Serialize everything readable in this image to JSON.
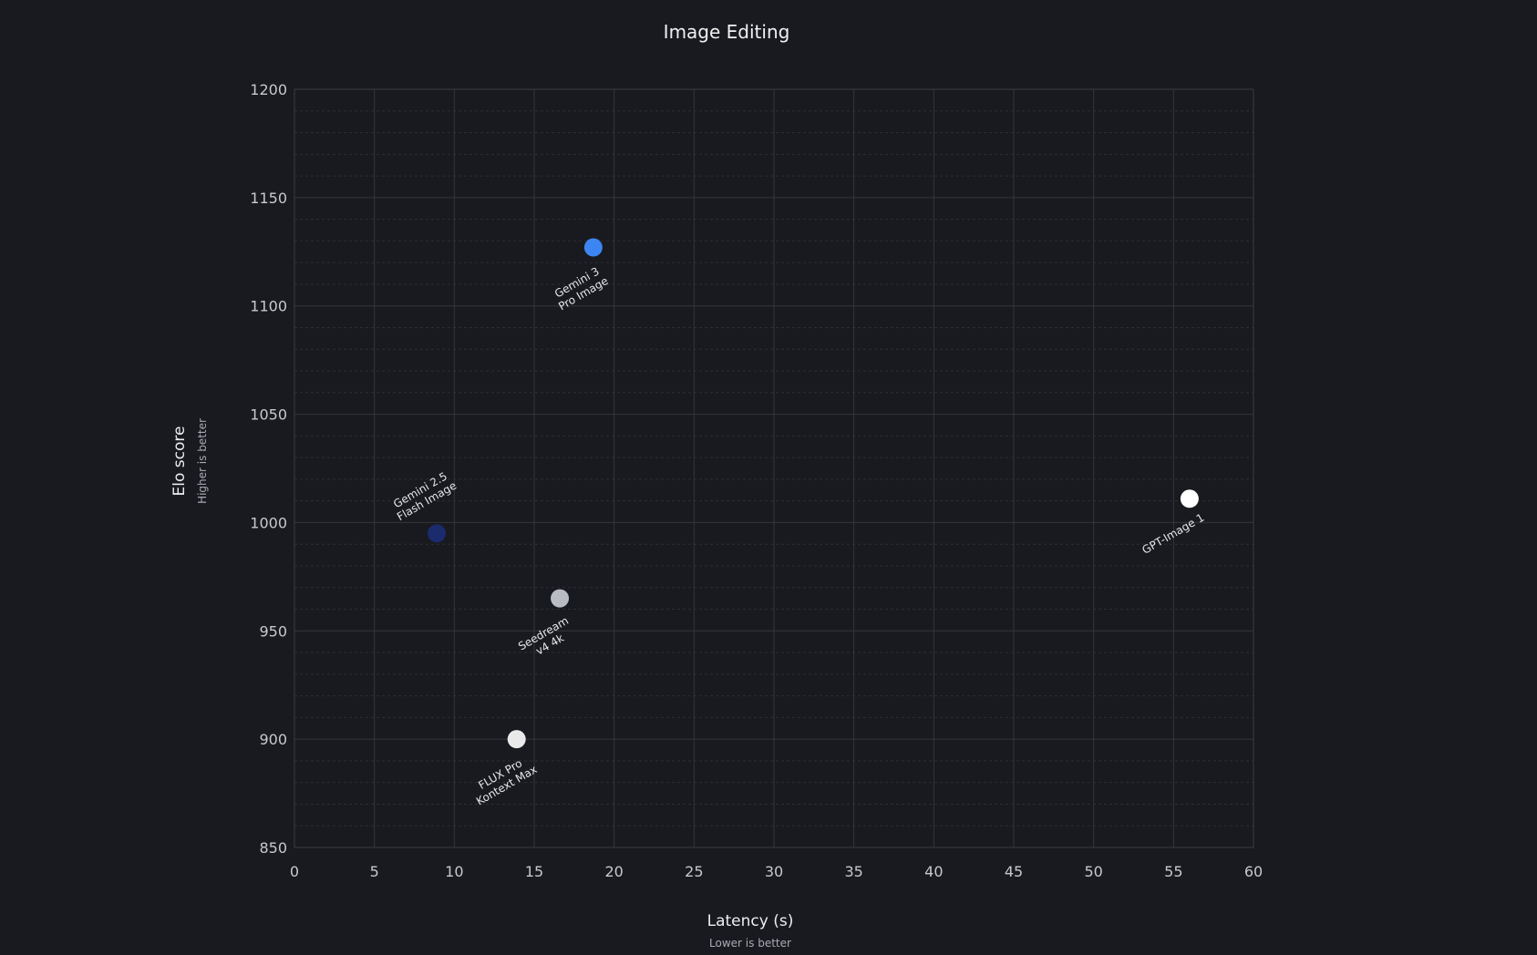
{
  "chart_data": {
    "type": "scatter",
    "title": "Image Editing",
    "xlabel": "Latency (s)",
    "xlabel_sub": "Lower is better",
    "ylabel": "Elo score",
    "ylabel_sub": "Higher is better",
    "xlim": [
      0,
      60
    ],
    "ylim": [
      850,
      1200
    ],
    "xticks": [
      0,
      5,
      10,
      15,
      20,
      25,
      30,
      35,
      40,
      45,
      50,
      55,
      60
    ],
    "yticks": [
      850,
      900,
      950,
      1000,
      1050,
      1100,
      1150,
      1200
    ],
    "grid": true,
    "points": [
      {
        "label_lines": [
          "Gemini 3",
          "Pro Image"
        ],
        "x": 18.7,
        "y": 1127,
        "color": "#3d86f2",
        "label_position": "below"
      },
      {
        "label_lines": [
          "Gemini 2.5",
          "Flash Image"
        ],
        "x": 8.9,
        "y": 995,
        "color": "#1c2a6e",
        "label_position": "above"
      },
      {
        "label_lines": [
          "Seedream",
          "v4 4k"
        ],
        "x": 16.6,
        "y": 965,
        "color": "#b9bcc2",
        "label_position": "below"
      },
      {
        "label_lines": [
          "FLUX Pro",
          "Kontext Max"
        ],
        "x": 13.9,
        "y": 900,
        "color": "#e9e9ea",
        "label_position": "below"
      },
      {
        "label_lines": [
          "GPT-Image 1"
        ],
        "x": 56,
        "y": 1011,
        "color": "#ffffff",
        "label_position": "below"
      }
    ]
  }
}
